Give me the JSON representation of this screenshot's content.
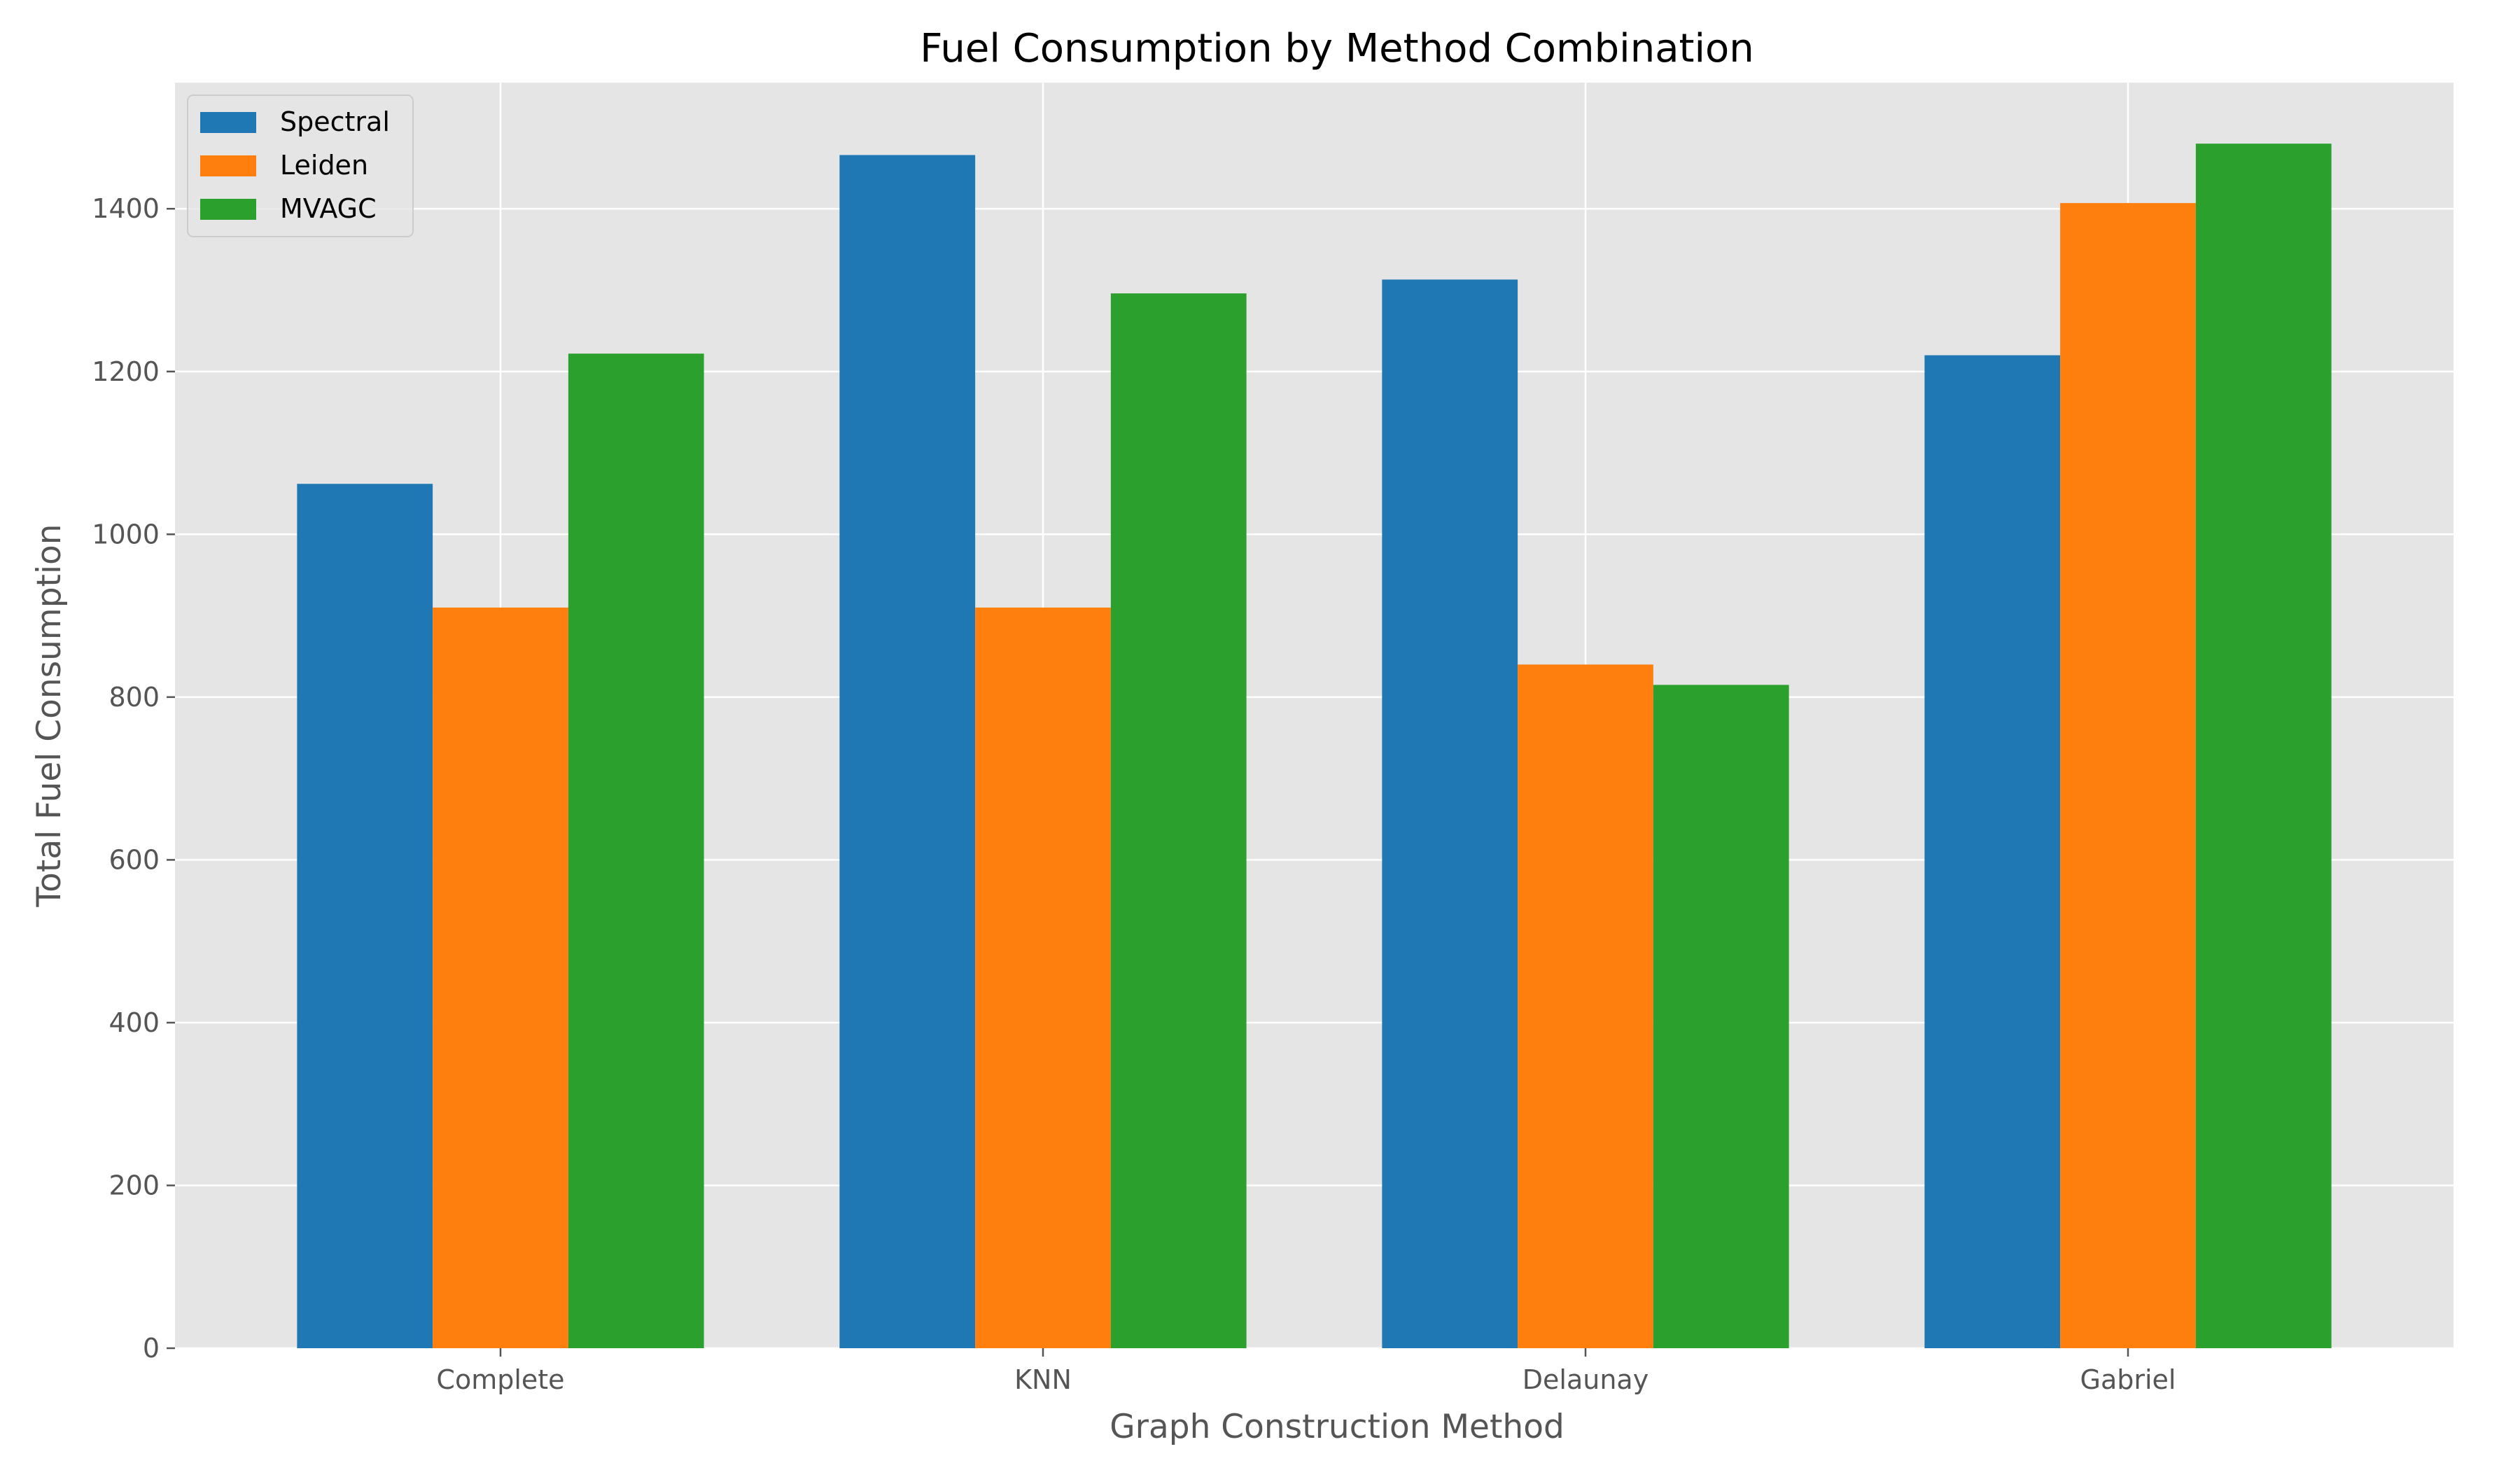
{
  "chart_data": {
    "type": "bar",
    "title": "Fuel Consumption by Method Combination",
    "xlabel": "Graph Construction Method",
    "ylabel": "Total Fuel Consumption",
    "categories": [
      "Complete",
      "KNN",
      "Delaunay",
      "Gabriel"
    ],
    "series": [
      {
        "name": "Spectral",
        "color": "#1f77b4",
        "values": [
          1062,
          1466,
          1313,
          1220
        ]
      },
      {
        "name": "Leiden",
        "color": "#ff7f0e",
        "values": [
          910,
          910,
          840,
          1407
        ]
      },
      {
        "name": "MVAGC",
        "color": "#2ca02c",
        "values": [
          1222,
          1296,
          815,
          1480
        ]
      }
    ],
    "ylim": [
      0,
      1555
    ],
    "yticks": [
      0,
      200,
      400,
      600,
      800,
      1000,
      1200,
      1400
    ],
    "grid": true,
    "legend_position": "top-left",
    "background_color": "#e5e5e5",
    "grid_color": "#ffffff"
  }
}
